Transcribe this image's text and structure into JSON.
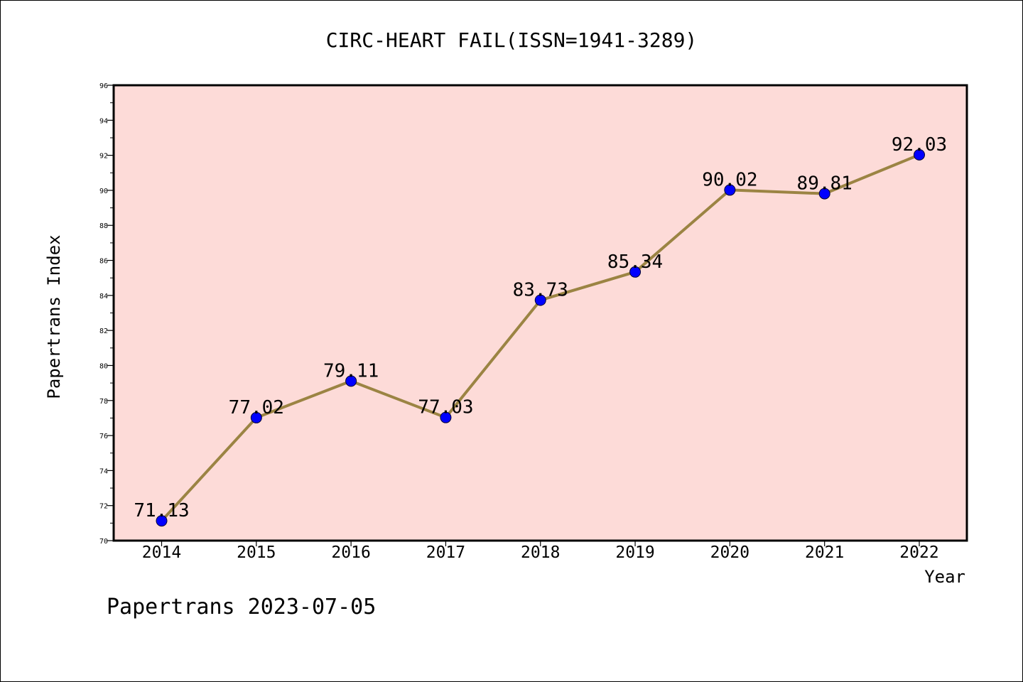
{
  "chart_data": {
    "type": "line",
    "title": "CIRC-HEART FAIL(ISSN=1941-3289)",
    "xlabel": "Year",
    "ylabel": "Papertrans Index",
    "categories": [
      "2014",
      "2015",
      "2016",
      "2017",
      "2018",
      "2019",
      "2020",
      "2021",
      "2022"
    ],
    "values": [
      71.13,
      77.02,
      79.11,
      77.03,
      83.73,
      85.34,
      90.02,
      89.81,
      92.03
    ],
    "data_labels": [
      "71.13",
      "77.02",
      "79.11",
      "77.03",
      "83.73",
      "85.34",
      "90.02",
      "89.81",
      "92.03"
    ],
    "ylim": [
      70,
      96
    ],
    "yticks": [
      "70",
      "72",
      "74",
      "76",
      "78",
      "80",
      "82",
      "84",
      "86",
      "88",
      "90",
      "92",
      "94",
      "96"
    ],
    "grid": false,
    "colors": {
      "plot_background": "#fddbd8",
      "line": "#9b8443",
      "marker": "#0000ff"
    }
  },
  "footer": "Papertrans 2023-07-05"
}
